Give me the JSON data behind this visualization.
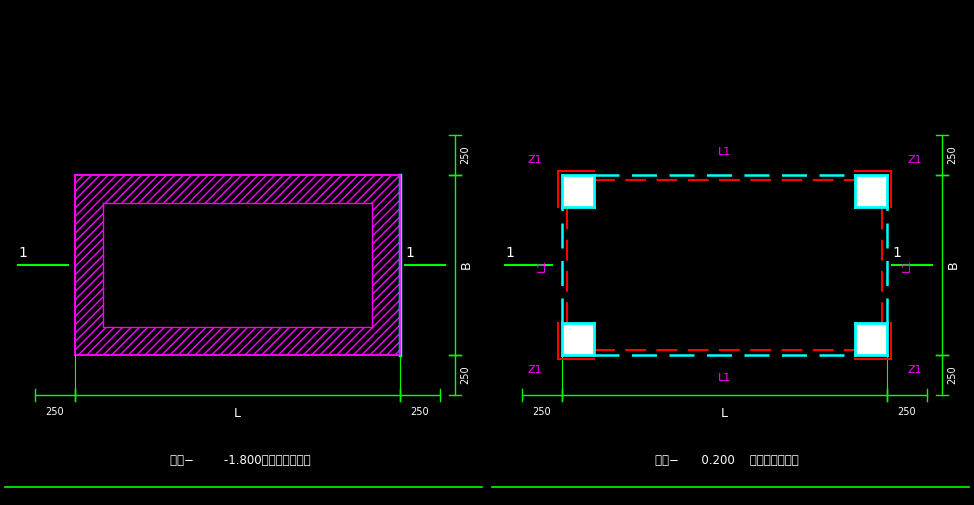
{
  "bg_color": "#000000",
  "green": "#00ff00",
  "magenta": "#ff00ff",
  "cyan": "#00ffff",
  "red": "#ff0000",
  "white": "#ffffff",
  "left_title": "风井−        -1.800标高平面大样图",
  "right_title": "风井−      0.200    标高平面大样图",
  "dim_250": "250",
  "dim_L": "L",
  "dim_B": "B",
  "dim_1": "1",
  "dim_Z1": "Z1",
  "dim_L1": "L1"
}
